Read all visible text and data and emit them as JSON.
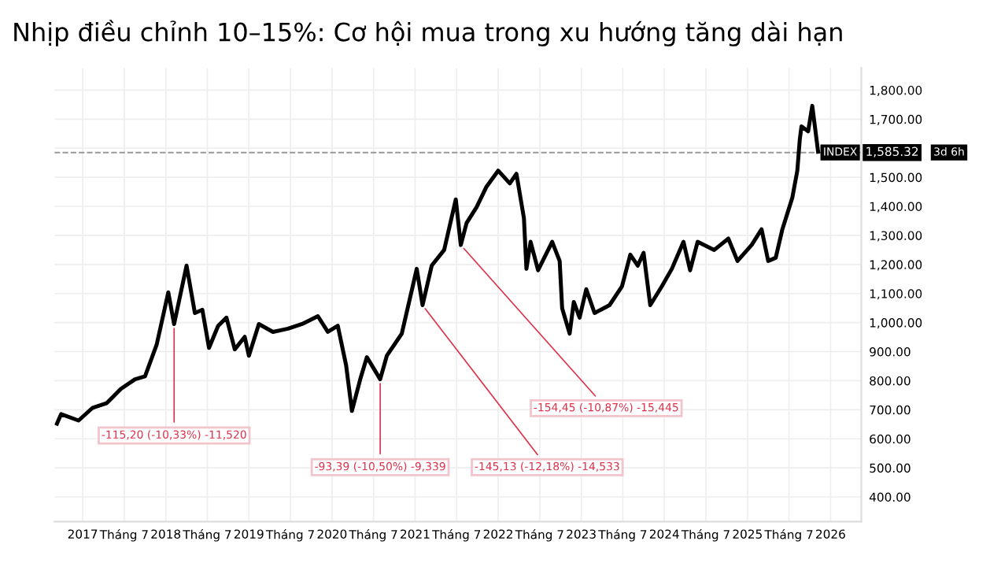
{
  "chart_data": {
    "type": "line",
    "title": "Nhịp điều chỉnh 10–15%: Cơ hội mua trong xu hướng tăng dài hạn",
    "x": [
      2016.69,
      2016.74,
      2016.95,
      2017.12,
      2017.29,
      2017.46,
      2017.63,
      2017.75,
      2017.89,
      2018.03,
      2018.1,
      2018.25,
      2018.35,
      2018.44,
      2018.52,
      2018.63,
      2018.73,
      2018.83,
      2018.95,
      2019.0,
      2019.12,
      2019.29,
      2019.47,
      2019.64,
      2019.83,
      2019.95,
      2020.07,
      2020.17,
      2020.24,
      2020.34,
      2020.42,
      2020.58,
      2020.66,
      2020.84,
      2021.02,
      2021.09,
      2021.2,
      2021.35,
      2021.49,
      2021.55,
      2021.62,
      2021.74,
      2021.86,
      2022.0,
      2022.14,
      2022.22,
      2022.31,
      2022.34,
      2022.39,
      2022.48,
      2022.65,
      2022.74,
      2022.77,
      2022.86,
      2022.91,
      2022.98,
      2023.06,
      2023.16,
      2023.34,
      2023.49,
      2023.59,
      2023.68,
      2023.75,
      2023.83,
      2023.97,
      2024.09,
      2024.23,
      2024.31,
      2024.4,
      2024.6,
      2024.77,
      2024.88,
      2025.05,
      2025.17,
      2025.25,
      2025.34,
      2025.42,
      2025.54,
      2025.6,
      2025.63,
      2025.65,
      2025.73,
      2025.78,
      2025.85
    ],
    "series": [
      {
        "name": "INDEX",
        "color": "#000000",
        "values": [
          652,
          685,
          663,
          707,
          723,
          772,
          805,
          815,
          924,
          1104,
          995,
          1196,
          1033,
          1044,
          913,
          989,
          1017,
          908,
          951,
          886,
          995,
          968,
          979,
          995,
          1022,
          968,
          989,
          853,
          696,
          805,
          881,
          805,
          886,
          962,
          1185,
          1060,
          1196,
          1250,
          1424,
          1267,
          1343,
          1397,
          1468,
          1523,
          1479,
          1512,
          1359,
          1185,
          1278,
          1180,
          1278,
          1212,
          1049,
          962,
          1071,
          1017,
          1115,
          1033,
          1060,
          1125,
          1234,
          1196,
          1240,
          1060,
          1125,
          1185,
          1278,
          1180,
          1278,
          1250,
          1289,
          1212,
          1267,
          1321,
          1212,
          1223,
          1321,
          1430,
          1523,
          1631,
          1675,
          1658,
          1746,
          1588
        ]
      }
    ],
    "xlim": [
      2016.66,
      2026.37
    ],
    "ylim": [
      315,
      1876
    ],
    "xticks": [
      {
        "value": 2017,
        "label": "2017"
      },
      {
        "value": 2017.5,
        "label": "Tháng 7"
      },
      {
        "value": 2018,
        "label": "2018"
      },
      {
        "value": 2018.5,
        "label": "Tháng 7"
      },
      {
        "value": 2019,
        "label": "2019"
      },
      {
        "value": 2019.5,
        "label": "Tháng 7"
      },
      {
        "value": 2020,
        "label": "2020"
      },
      {
        "value": 2020.5,
        "label": "Tháng 7"
      },
      {
        "value": 2021,
        "label": "2021"
      },
      {
        "value": 2021.5,
        "label": "Tháng 7"
      },
      {
        "value": 2022,
        "label": "2022"
      },
      {
        "value": 2022.5,
        "label": "Tháng 7"
      },
      {
        "value": 2023,
        "label": "2023"
      },
      {
        "value": 2023.5,
        "label": "Tháng 7"
      },
      {
        "value": 2024,
        "label": "2024"
      },
      {
        "value": 2024.5,
        "label": "Tháng 7"
      },
      {
        "value": 2025,
        "label": "2025"
      },
      {
        "value": 2025.5,
        "label": "Tháng 7"
      },
      {
        "value": 2026,
        "label": "2026"
      }
    ],
    "yticks": [
      {
        "value": 400,
        "label": "400.00"
      },
      {
        "value": 500,
        "label": "500.00"
      },
      {
        "value": 600,
        "label": "600.00"
      },
      {
        "value": 700,
        "label": "700.00"
      },
      {
        "value": 800,
        "label": "800.00"
      },
      {
        "value": 900,
        "label": "900.00"
      },
      {
        "value": 1000,
        "label": "1,000.00"
      },
      {
        "value": 1100,
        "label": "1,100.00"
      },
      {
        "value": 1200,
        "label": "1,200.00"
      },
      {
        "value": 1300,
        "label": "1,300.00"
      },
      {
        "value": 1400,
        "label": "1,400.00"
      },
      {
        "value": 1500,
        "label": "1,500.00"
      },
      {
        "value": 1600,
        "label": null
      },
      {
        "value": 1700,
        "label": "1,700.00"
      },
      {
        "value": 1800,
        "label": "1,800.00"
      }
    ],
    "ref_lines": [
      {
        "axis": "y",
        "value": 1585.32,
        "label": "1,585.32",
        "color": "#999999",
        "line_style": "dashed"
      }
    ],
    "annotations": [
      {
        "text": "-115,20 (-10,33%) -11,520",
        "x": 2018.1,
        "y": 995
      },
      {
        "text": "-93,39 (-10,50%) -9,339",
        "x": 2020.58,
        "y": 805
      },
      {
        "text": "-145,13 (-12,18%) -14,533",
        "x": 2021.09,
        "y": 1060
      },
      {
        "text": "-154,45 (-10,87%) -15,445",
        "x": 2021.55,
        "y": 1267
      },
      "3d 6h"
    ],
    "grid": true,
    "line_style": "solid",
    "marker": "none"
  }
}
